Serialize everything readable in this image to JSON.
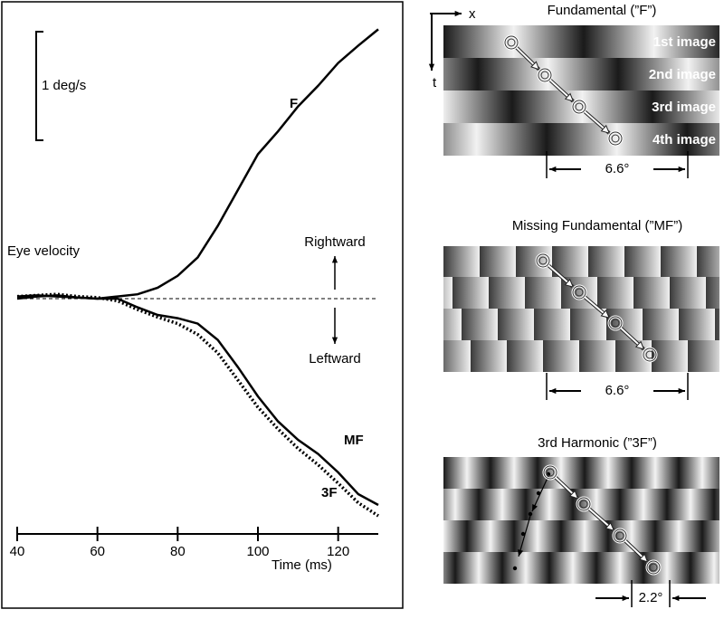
{
  "chart_data": {
    "type": "line",
    "x": [
      40,
      45,
      50,
      55,
      60,
      65,
      70,
      75,
      80,
      85,
      90,
      95,
      100,
      105,
      110,
      115,
      120,
      125,
      130
    ],
    "series": [
      {
        "name": "F",
        "color": "#000000",
        "line_style": "solid",
        "values": [
          0,
          0.02,
          0.03,
          0.01,
          0,
          0.02,
          0.04,
          0.1,
          0.21,
          0.38,
          0.67,
          1.0,
          1.33,
          1.54,
          1.77,
          1.96,
          2.17,
          2.33,
          2.48
        ]
      },
      {
        "name": "MF",
        "color": "#000000",
        "line_style": "solid",
        "values": [
          0.02,
          0.03,
          0.02,
          0.01,
          0,
          0,
          -0.08,
          -0.15,
          -0.18,
          -0.23,
          -0.38,
          -0.63,
          -0.9,
          -1.13,
          -1.3,
          -1.43,
          -1.6,
          -1.8,
          -1.9
        ]
      },
      {
        "name": "3F",
        "color": "#000000",
        "line_style": "dotted",
        "values": [
          0.02,
          0.03,
          0.04,
          0.02,
          0.01,
          -0.02,
          -0.1,
          -0.17,
          -0.23,
          -0.33,
          -0.5,
          -0.75,
          -1.0,
          -1.2,
          -1.38,
          -1.53,
          -1.7,
          -1.88,
          -2.0
        ]
      }
    ],
    "xlim": [
      40,
      130
    ],
    "xticks": [
      40,
      60,
      80,
      100,
      120
    ],
    "ylim": [
      -2.2,
      2.7
    ],
    "x_label": "Time (ms)",
    "y_label": "Eye velocity",
    "scale_bar": {
      "value": 1,
      "label": "1 deg/s"
    },
    "reference_line": 0,
    "annotations": [
      "Rightward",
      "Leftward"
    ]
  },
  "axes_labels": {
    "x": "x",
    "t": "t"
  },
  "panels": [
    {
      "title": "Fundamental (”F”)",
      "row_labels": [
        "1st image",
        "2nd image",
        "3rd image",
        "4th image"
      ],
      "span_label": "6.6°"
    },
    {
      "title": "Missing Fundamental (”MF”)",
      "span_label": "6.6°"
    },
    {
      "title": "3rd Harmonic (”3F”)",
      "span_label": "2.2°"
    }
  ]
}
